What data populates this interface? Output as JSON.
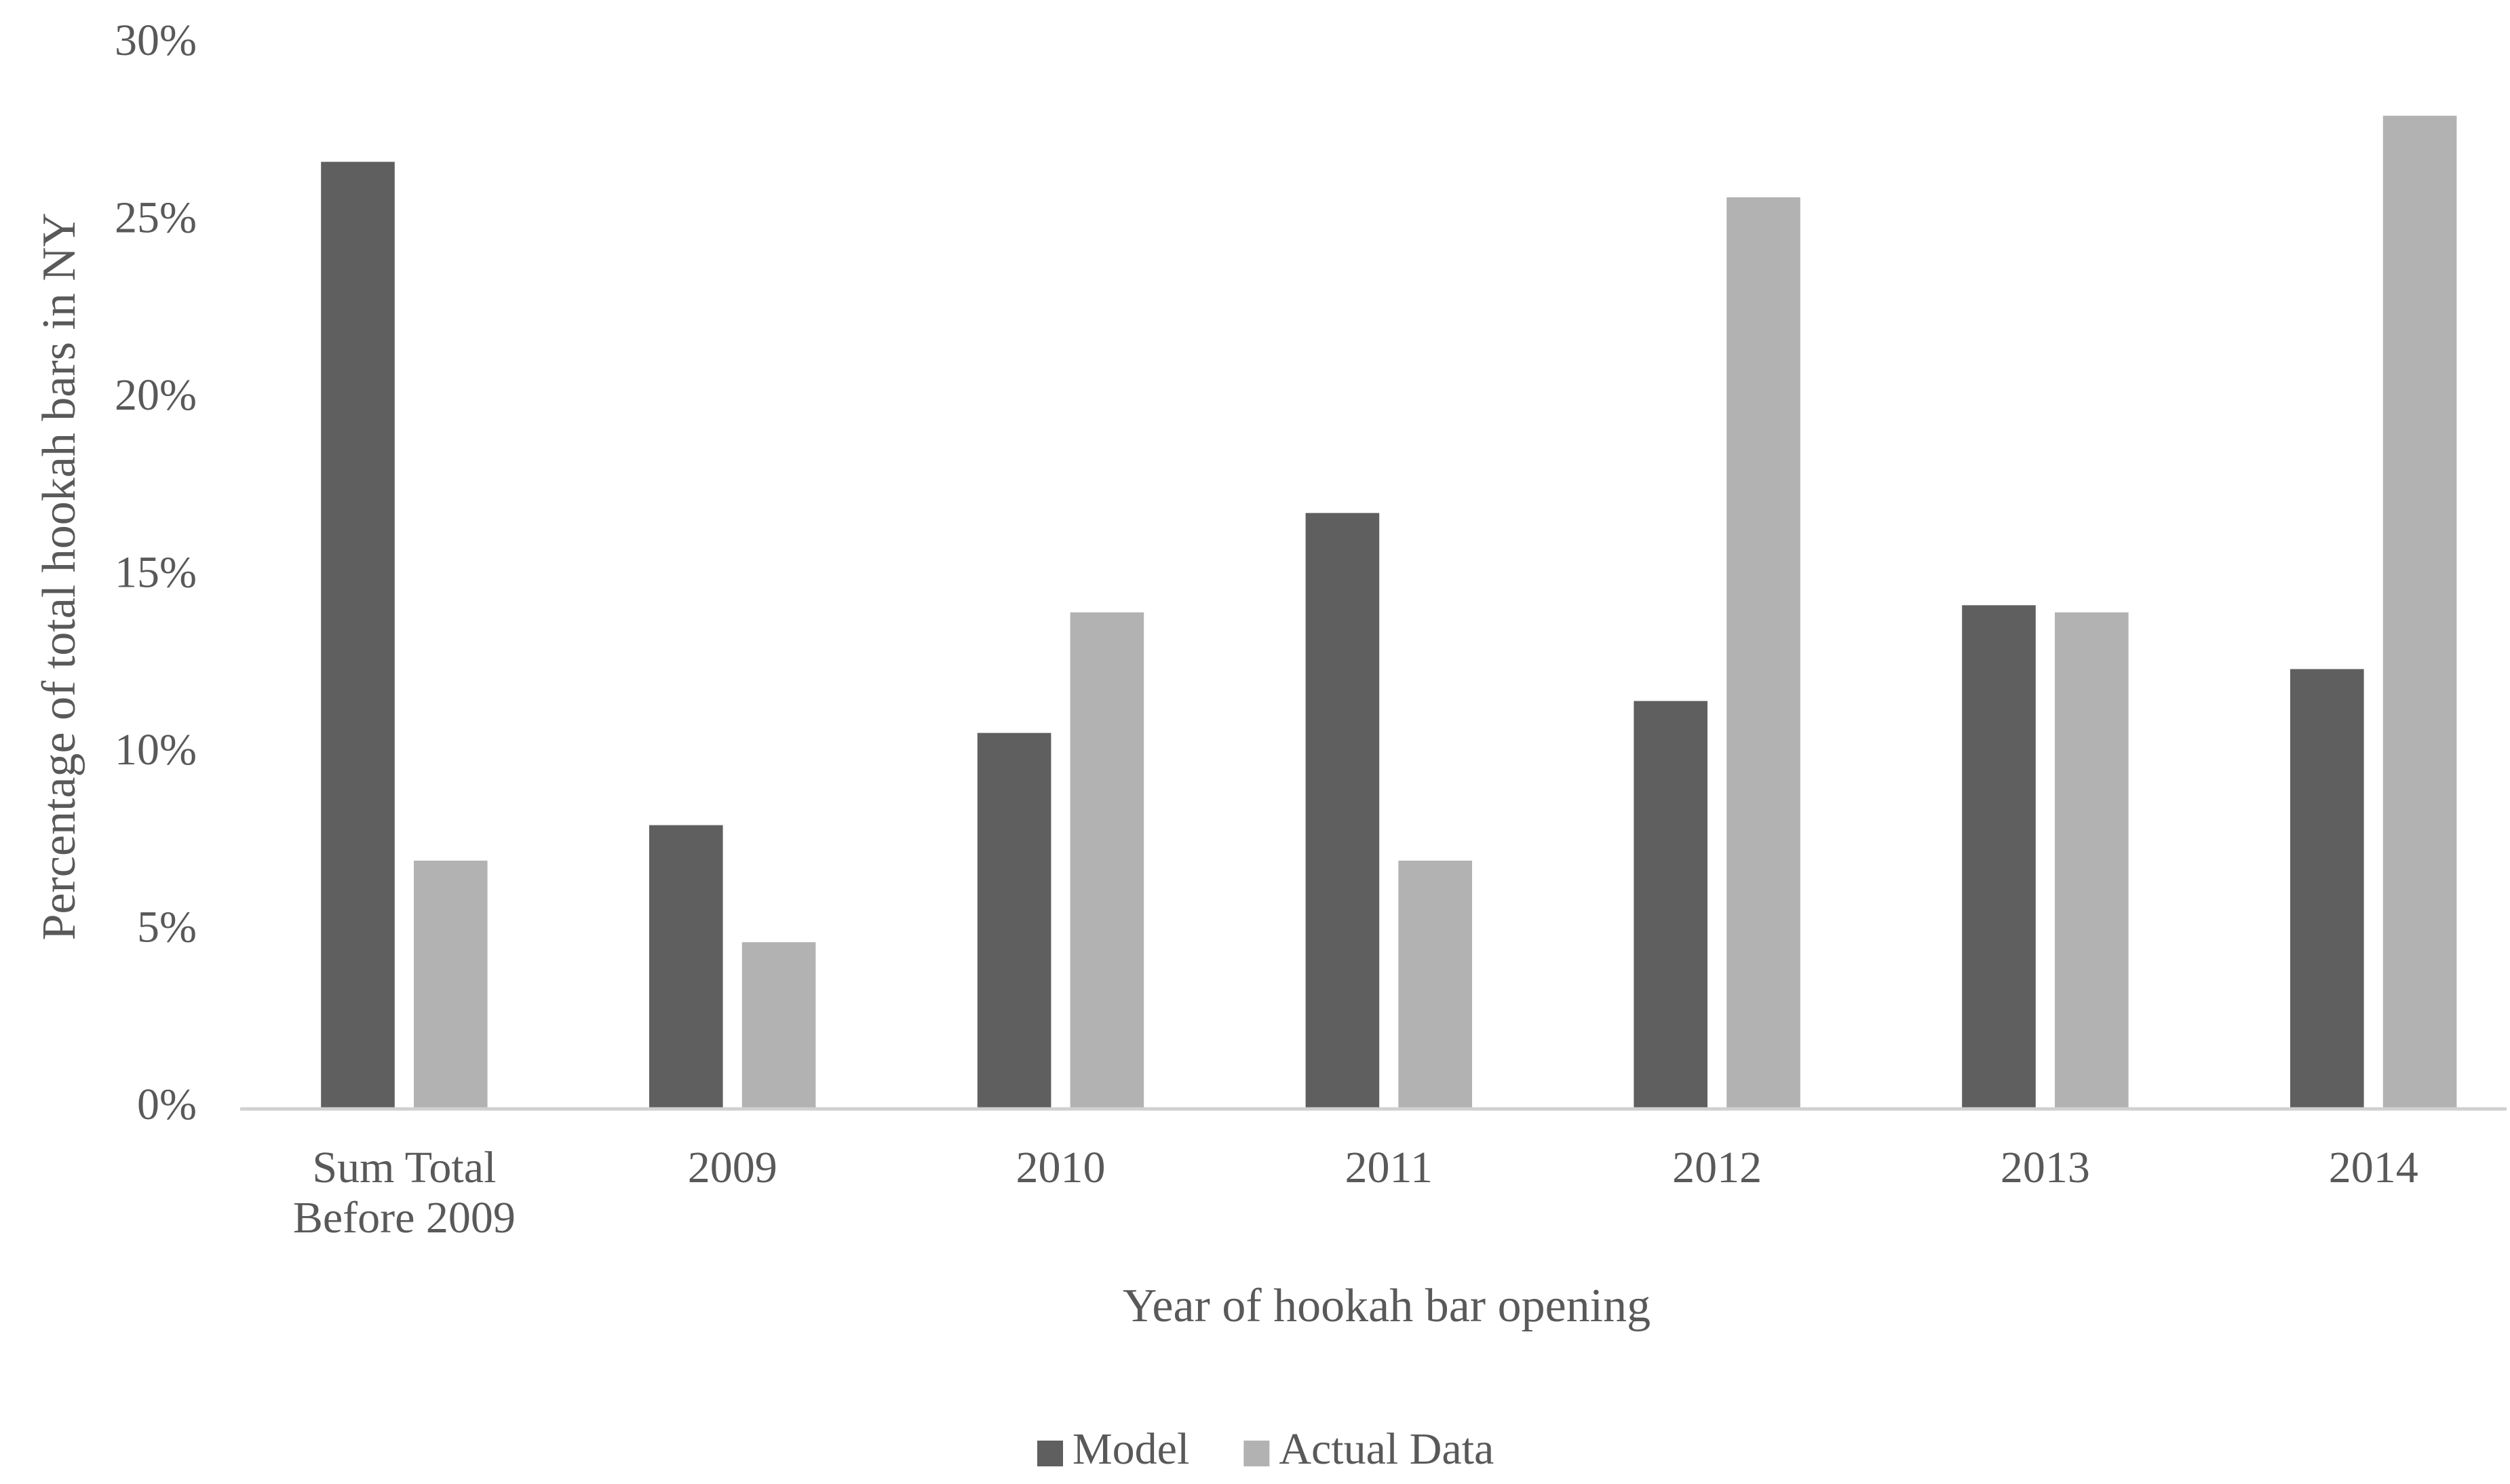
{
  "chart_data": {
    "type": "bar",
    "x_label": "Year of hookah bar opening",
    "y_label": "Percentage of total hookah bars in NY",
    "categories": [
      "Sum Total Before 2009",
      "2009",
      "2010",
      "2011",
      "2012",
      "2013",
      "2014"
    ],
    "series": [
      {
        "name": "Model",
        "color": "#5f5f5f",
        "values": [
          26.7,
          8.0,
          10.6,
          16.8,
          11.5,
          14.2,
          12.4
        ]
      },
      {
        "name": "Actual Data",
        "color": "#b2b2b2",
        "values": [
          7.0,
          4.7,
          14.0,
          7.0,
          25.7,
          14.0,
          28.0
        ]
      }
    ],
    "ylim": [
      0,
      30
    ],
    "yticks": [
      {
        "value": 0,
        "label": "0%"
      },
      {
        "value": 5,
        "label": "5%"
      },
      {
        "value": 10,
        "label": "10%"
      },
      {
        "value": 15,
        "label": "15%"
      },
      {
        "value": 20,
        "label": "20%"
      },
      {
        "value": 25,
        "label": "25%"
      },
      {
        "value": 30,
        "label": "30%"
      }
    ],
    "grid": false,
    "legend": "bottom"
  }
}
